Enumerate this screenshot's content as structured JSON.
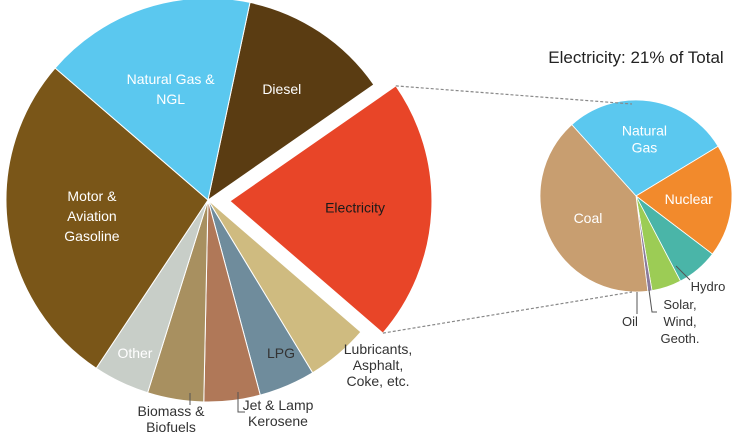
{
  "chart_data": [
    {
      "type": "pie",
      "title": "",
      "slices": [
        {
          "label": "Diesel",
          "value": 12,
          "color": "#5a3c12",
          "text_color": "#ffffff"
        },
        {
          "label": "Electricity",
          "value": 21,
          "color": "#e84528",
          "text_color": "#1a1a1a",
          "exploded": true
        },
        {
          "label": "Lubricants,\nAsphalt,\nCoke, etc.",
          "value": 5,
          "color": "#cfbb80",
          "text_color": "#333333",
          "outside": true
        },
        {
          "label": "LPG",
          "value": 4.5,
          "color": "#6f8c9c",
          "text_color": "#333333",
          "outside": true
        },
        {
          "label": "Jet & Lamp\nKerosene",
          "value": 4.5,
          "color": "#b07858",
          "text_color": "#333333",
          "outside": true
        },
        {
          "label": "Biomass &\nBiofuels",
          "value": 4.5,
          "color": "#a89060",
          "text_color": "#333333",
          "outside": true
        },
        {
          "label": "Other",
          "value": 4.5,
          "color": "#c8cec8",
          "text_color": "#333333"
        },
        {
          "label": "Motor &\nAviation\nGasoline",
          "value": 27,
          "color": "#7a5618",
          "text_color": "#ffffff"
        },
        {
          "label": "Natural Gas &\nNGL",
          "value": 17,
          "color": "#5bc8ef",
          "text_color": "#ffffff"
        }
      ]
    },
    {
      "type": "pie",
      "title": "Electricity: 21% of Total",
      "slices": [
        {
          "label": "Natural\nGas",
          "value": 28,
          "color": "#5bc8ef",
          "text_color": "#ffffff"
        },
        {
          "label": "Nuclear",
          "value": 19,
          "color": "#f28a2c",
          "text_color": "#ffffff"
        },
        {
          "label": "Hydro",
          "value": 7,
          "color": "#4ab5a8",
          "text_color": "#333333",
          "outside": true
        },
        {
          "label": "Solar,\nWind,\nGeoth.",
          "value": 5,
          "color": "#9ccc55",
          "text_color": "#333333",
          "outside": true
        },
        {
          "label": "Oil",
          "value": 0.7,
          "color": "#8a7a9a",
          "text_color": "#333333",
          "outside": true
        },
        {
          "label": "Coal",
          "value": 40.3,
          "color": "#c89e70",
          "text_color": "#ffffff"
        }
      ]
    }
  ]
}
